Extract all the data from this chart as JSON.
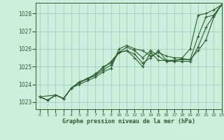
{
  "background_color": "#cceedd",
  "grid_color": "#99ccbb",
  "line_color": "#2d5e30",
  "title": "Graphe pression niveau de la mer (hPa)",
  "xlim": [
    -0.5,
    23
  ],
  "ylim": [
    1022.6,
    1028.6
  ],
  "yticks": [
    1023,
    1024,
    1025,
    1026,
    1027,
    1028
  ],
  "xticks": [
    0,
    1,
    2,
    3,
    4,
    5,
    6,
    7,
    8,
    9,
    10,
    11,
    12,
    13,
    14,
    15,
    16,
    17,
    18,
    19,
    20,
    21,
    22,
    23
  ],
  "series": [
    {
      "x": [
        0,
        1,
        2,
        3,
        4,
        5,
        6,
        7,
        8,
        9,
        10,
        11,
        12,
        13,
        14,
        15,
        16,
        17,
        18,
        19,
        20,
        21,
        22,
        23
      ],
      "y": [
        1023.3,
        1023.1,
        1023.4,
        1023.2,
        1023.8,
        1024.0,
        1024.2,
        1024.4,
        1024.7,
        1024.9,
        1026.0,
        1026.2,
        1026.0,
        1025.9,
        1025.6,
        1025.8,
        1025.6,
        1025.5,
        1025.5,
        1026.0,
        1027.9,
        1028.0,
        1028.2,
        1028.5
      ]
    },
    {
      "x": [
        0,
        1,
        2,
        3,
        4,
        5,
        6,
        7,
        8,
        9,
        10,
        11,
        12,
        13,
        14,
        15,
        16,
        17,
        18,
        19,
        20,
        21,
        22,
        23
      ],
      "y": [
        1023.3,
        1023.1,
        1023.4,
        1023.2,
        1023.8,
        1024.1,
        1024.3,
        1024.5,
        1025.0,
        1025.2,
        1025.8,
        1026.1,
        1025.9,
        1025.5,
        1025.9,
        1025.6,
        1025.3,
        1025.3,
        1025.3,
        1025.3,
        1026.1,
        1027.2,
        1027.9,
        1028.5
      ]
    },
    {
      "x": [
        0,
        1,
        2,
        3,
        4,
        5,
        6,
        7,
        8,
        9,
        10,
        11,
        12,
        13,
        14,
        15,
        16,
        17,
        18,
        19,
        20,
        21,
        22,
        23
      ],
      "y": [
        1023.3,
        1023.1,
        1023.4,
        1023.2,
        1023.8,
        1024.1,
        1024.35,
        1024.5,
        1024.8,
        1025.1,
        1025.8,
        1025.9,
        1025.5,
        1025.0,
        1025.8,
        1025.35,
        1025.35,
        1025.35,
        1025.4,
        1025.4,
        1026.7,
        1027.8,
        1027.9,
        1028.5
      ]
    },
    {
      "x": [
        0,
        2,
        3,
        4,
        5,
        6,
        7,
        8,
        9,
        10,
        11,
        12,
        13,
        14,
        15,
        16,
        17,
        18,
        19,
        20,
        21,
        22,
        23
      ],
      "y": [
        1023.3,
        1023.4,
        1023.2,
        1023.8,
        1024.15,
        1024.3,
        1024.6,
        1024.9,
        1025.3,
        1025.8,
        1025.9,
        1025.7,
        1025.2,
        1025.5,
        1025.9,
        1025.35,
        1025.35,
        1025.45,
        1025.4,
        1025.9,
        1026.5,
        1027.8,
        1028.5
      ]
    }
  ]
}
